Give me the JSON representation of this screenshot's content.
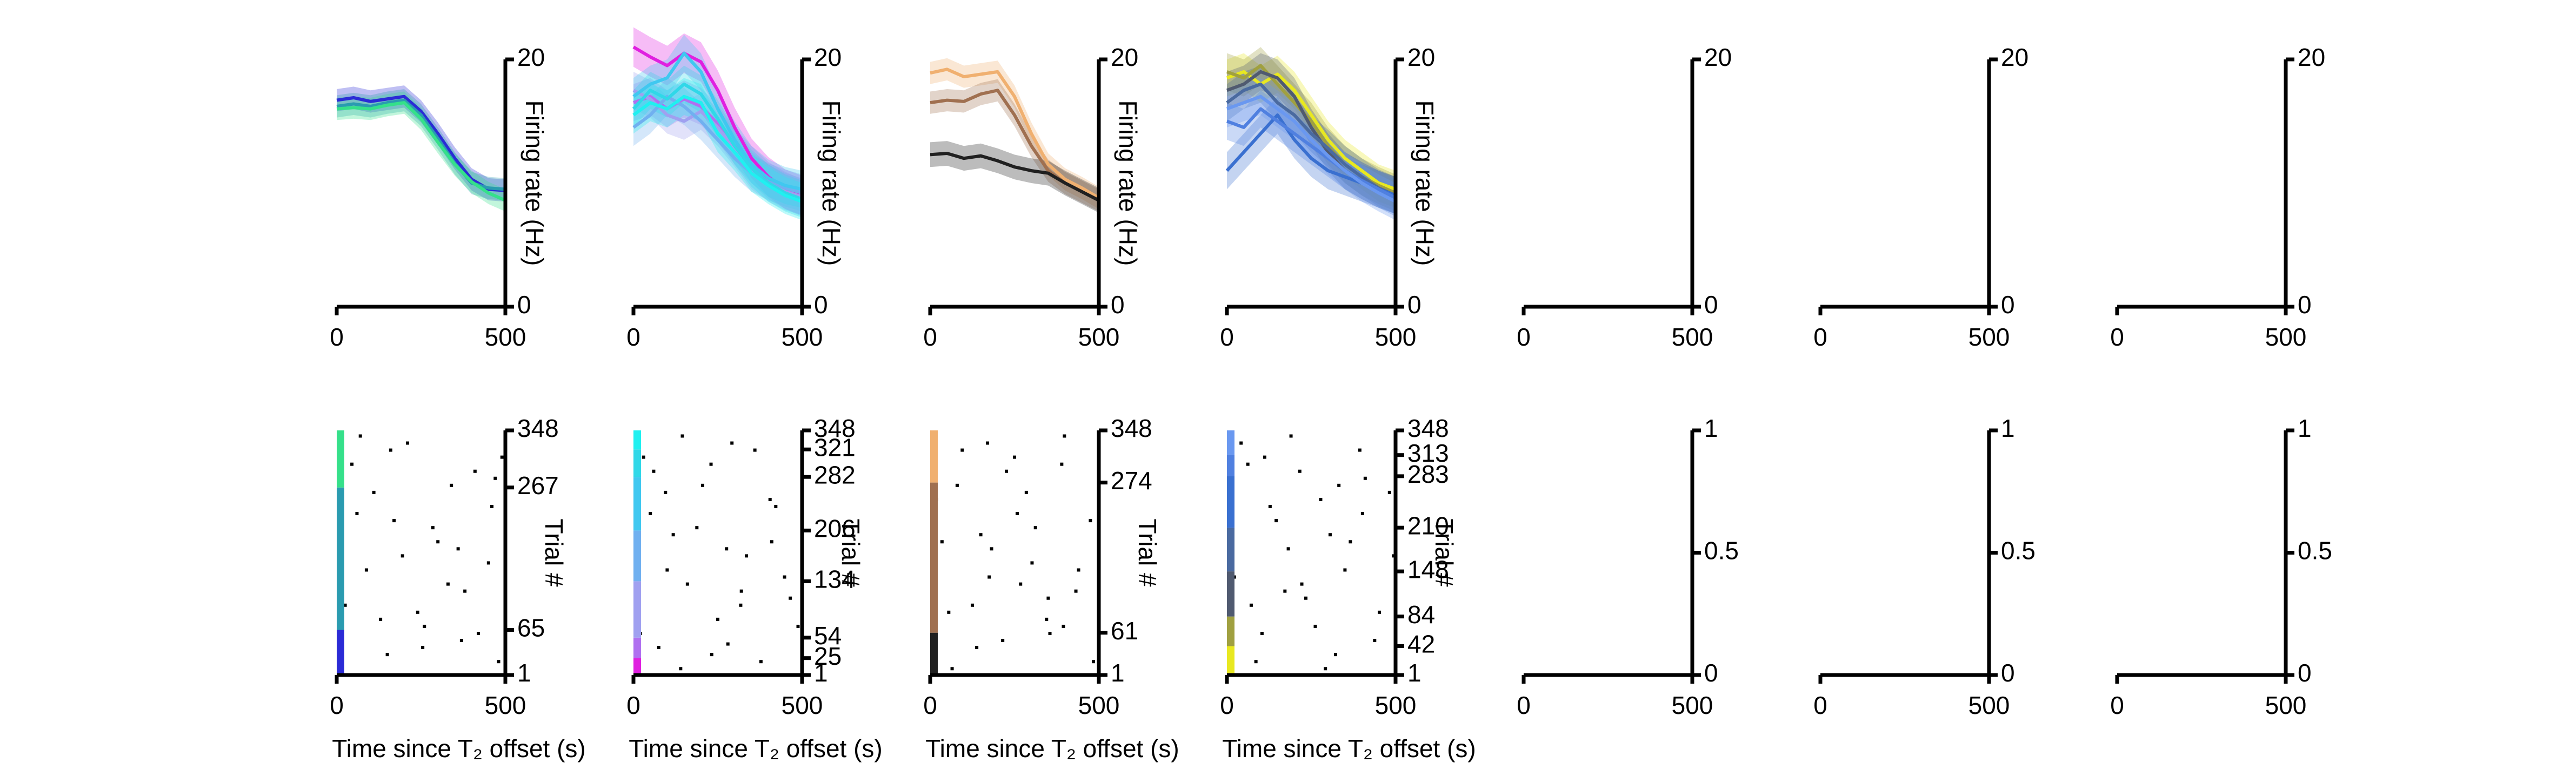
{
  "chart_data": [
    {
      "type": "line",
      "ylabel": "Firing rate (Hz)",
      "x": [
        0,
        50,
        100,
        150,
        200,
        250,
        300,
        350,
        400,
        450,
        500
      ],
      "xlim": [
        0,
        500
      ],
      "xticks": [
        0,
        500
      ],
      "ylim": [
        0,
        20
      ],
      "yticks": [
        0,
        20
      ],
      "series": [
        {
          "color": "#2b2bd6",
          "error": 0.9,
          "values": [
            16.7,
            16.9,
            16.6,
            16.8,
            17.0,
            15.8,
            14.0,
            12.0,
            10.3,
            9.5,
            9.4
          ]
        },
        {
          "color": "#2a9bb0",
          "error": 0.9,
          "values": [
            16.2,
            16.4,
            16.2,
            16.5,
            16.7,
            15.5,
            13.6,
            11.6,
            10.0,
            9.6,
            9.5
          ]
        },
        {
          "color": "#35e08a",
          "error": 0.9,
          "values": [
            16.0,
            16.1,
            16.0,
            16.3,
            16.5,
            15.2,
            13.3,
            11.5,
            10.1,
            9.2,
            8.6
          ]
        }
      ]
    },
    {
      "type": "line",
      "ylabel": "Firing rate (Hz)",
      "x": [
        0,
        50,
        100,
        150,
        200,
        250,
        300,
        350,
        400,
        450,
        500
      ],
      "xlim": [
        0,
        500
      ],
      "xticks": [
        0,
        500
      ],
      "ylim": [
        0,
        20
      ],
      "yticks": [
        0,
        20
      ],
      "series": [
        {
          "color": "#e020e0",
          "error": 1.6,
          "values": [
            21.0,
            20.2,
            19.5,
            20.5,
            19.8,
            17.5,
            14.5,
            12.0,
            10.5,
            9.5,
            9.0
          ]
        },
        {
          "color": "#b070f0",
          "error": 1.5,
          "values": [
            16.5,
            17.0,
            16.0,
            16.8,
            16.2,
            14.8,
            13.0,
            11.5,
            10.2,
            9.4,
            8.8
          ]
        },
        {
          "color": "#a0a0f0",
          "error": 1.5,
          "values": [
            17.5,
            16.8,
            15.5,
            15.0,
            15.8,
            14.5,
            12.8,
            11.0,
            10.0,
            9.3,
            8.9
          ]
        },
        {
          "color": "#70b0f0",
          "error": 1.5,
          "values": [
            14.5,
            15.5,
            17.0,
            16.2,
            15.0,
            13.5,
            12.0,
            10.8,
            10.1,
            9.6,
            9.2
          ]
        },
        {
          "color": "#40c8f0",
          "error": 1.5,
          "values": [
            17.0,
            18.0,
            18.5,
            20.5,
            19.0,
            16.0,
            13.5,
            11.5,
            10.4,
            9.8,
            9.5
          ]
        },
        {
          "color": "#30d8e8",
          "error": 1.5,
          "values": [
            16.0,
            17.5,
            16.8,
            18.0,
            17.2,
            15.2,
            13.0,
            11.2,
            10.0,
            9.2,
            8.7
          ]
        },
        {
          "color": "#20f0f0",
          "error": 1.5,
          "values": [
            15.5,
            16.5,
            16.0,
            17.0,
            16.5,
            14.0,
            12.5,
            10.8,
            9.8,
            9.0,
            8.5
          ]
        }
      ]
    },
    {
      "type": "line",
      "ylabel": "Firing rate (Hz)",
      "x": [
        0,
        50,
        100,
        150,
        200,
        250,
        300,
        350,
        400,
        450,
        500
      ],
      "xlim": [
        0,
        500
      ],
      "xticks": [
        0,
        500
      ],
      "ylim": [
        0,
        20
      ],
      "yticks": [
        0,
        20
      ],
      "series": [
        {
          "color": "#f0b070",
          "error": 0.9,
          "values": [
            18.9,
            19.2,
            18.6,
            18.8,
            19.0,
            17.0,
            14.0,
            11.5,
            10.3,
            9.6,
            8.8
          ]
        },
        {
          "color": "#a07050",
          "error": 0.9,
          "values": [
            16.5,
            16.7,
            16.6,
            17.2,
            17.5,
            15.5,
            13.0,
            11.0,
            10.0,
            9.3,
            8.6
          ]
        },
        {
          "color": "#202020",
          "error": 1.0,
          "values": [
            12.3,
            12.4,
            12.0,
            12.2,
            11.8,
            11.3,
            11.0,
            10.8,
            10.0,
            9.3,
            8.6
          ]
        }
      ]
    },
    {
      "type": "line",
      "ylabel": "Firing rate (Hz)",
      "x": [
        0,
        50,
        100,
        150,
        200,
        250,
        300,
        350,
        400,
        450,
        500
      ],
      "xlim": [
        0,
        500
      ],
      "xticks": [
        0,
        500
      ],
      "ylim": [
        0,
        20
      ],
      "yticks": [
        0,
        20
      ],
      "series": [
        {
          "color": "#e8e820",
          "error": 1.5,
          "values": [
            18.5,
            19.0,
            18.0,
            18.8,
            17.5,
            15.5,
            13.5,
            12.0,
            11.0,
            10.0,
            9.5
          ]
        },
        {
          "color": "#a0a040",
          "error": 1.5,
          "values": [
            19.0,
            18.5,
            19.5,
            18.0,
            16.5,
            15.0,
            13.0,
            11.5,
            10.5,
            9.8,
            9.2
          ]
        },
        {
          "color": "#505a70",
          "error": 1.5,
          "values": [
            17.5,
            18.0,
            19.0,
            18.5,
            17.0,
            14.5,
            12.5,
            11.0,
            10.2,
            9.5,
            9.0
          ]
        },
        {
          "color": "#4a6aa0",
          "error": 1.5,
          "values": [
            16.5,
            17.5,
            18.0,
            16.5,
            15.5,
            14.0,
            12.8,
            11.5,
            10.5,
            9.6,
            9.0
          ]
        },
        {
          "color": "#3a70d0",
          "error": 1.5,
          "values": [
            11.0,
            12.5,
            14.0,
            15.5,
            13.5,
            12.0,
            11.0,
            10.5,
            10.0,
            9.5,
            9.0
          ]
        },
        {
          "color": "#5080e0",
          "error": 1.5,
          "values": [
            15.0,
            14.5,
            16.0,
            15.0,
            14.0,
            13.0,
            12.0,
            11.0,
            10.2,
            9.5,
            8.8
          ]
        },
        {
          "color": "#6a98f0",
          "error": 1.5,
          "values": [
            16.0,
            16.5,
            17.0,
            16.0,
            15.0,
            13.5,
            12.2,
            11.0,
            10.0,
            9.2,
            8.5
          ]
        }
      ]
    },
    {
      "type": "line",
      "xlim": [
        0,
        500
      ],
      "xticks": [
        0,
        500
      ],
      "ylim": [
        0,
        20
      ],
      "yticks": [
        0,
        20
      ],
      "series": []
    },
    {
      "type": "line",
      "xlim": [
        0,
        500
      ],
      "xticks": [
        0,
        500
      ],
      "ylim": [
        0,
        20
      ],
      "yticks": [
        0,
        20
      ],
      "series": []
    },
    {
      "type": "line",
      "xlim": [
        0,
        500
      ],
      "xticks": [
        0,
        500
      ],
      "ylim": [
        0,
        20
      ],
      "yticks": [
        0,
        20
      ],
      "series": []
    },
    {
      "type": "raster",
      "xlabel": "Time since T₂ offset (s)",
      "ylabel": "Trial #",
      "xlim": [
        0,
        500
      ],
      "xticks": [
        0,
        500
      ],
      "ylim": [
        1,
        348
      ],
      "yticks": [
        1,
        65,
        267,
        348
      ],
      "segment_colors": [
        "#2b2bd6",
        "#2a9bb0",
        "#35e08a"
      ],
      "spikes": {
        "x": [
          12,
          45,
          88,
          130,
          170,
          210,
          255,
          300,
          340,
          380,
          420,
          460,
          490,
          25,
          70,
          110,
          150,
          195,
          240,
          285,
          330,
          370,
          410,
          450,
          480,
          60,
          160,
          260,
          360,
          470
        ],
        "y": [
          20,
          300,
          150,
          80,
          220,
          330,
          40,
          190,
          270,
          120,
          60,
          240,
          310,
          100,
          340,
          260,
          30,
          170,
          90,
          210,
          130,
          50,
          290,
          160,
          20,
          230,
          320,
          70,
          180,
          280
        ]
      }
    },
    {
      "type": "raster",
      "xlabel": "Time since T₂ offset (s)",
      "ylabel": "Trial #",
      "xlim": [
        0,
        500
      ],
      "xticks": [
        0,
        500
      ],
      "ylim": [
        1,
        348
      ],
      "yticks": [
        1,
        25,
        54,
        134,
        206,
        282,
        321,
        348
      ],
      "segment_colors": [
        "#e020e0",
        "#b070f0",
        "#a0a0f0",
        "#70b0f0",
        "#40c8f0",
        "#30d8e8",
        "#20f0f0"
      ],
      "spikes": {
        "x": [
          30,
          75,
          118,
          160,
          205,
          250,
          292,
          335,
          378,
          422,
          465,
          20,
          60,
          100,
          145,
          188,
          232,
          276,
          318,
          360,
          405,
          448,
          488,
          50,
          140,
          230,
          320,
          410,
          95,
          280
        ],
        "y": [
          310,
          40,
          200,
          130,
          270,
          80,
          330,
          170,
          20,
          240,
          110,
          60,
          290,
          150,
          340,
          210,
          30,
          180,
          100,
          320,
          250,
          140,
          70,
          230,
          10,
          300,
          120,
          190,
          260,
          45
        ]
      }
    },
    {
      "type": "raster",
      "xlabel": "Time since T₂ offset (s)",
      "ylabel": "Trial #",
      "xlim": [
        0,
        500
      ],
      "xticks": [
        0,
        500
      ],
      "ylim": [
        1,
        348
      ],
      "yticks": [
        1,
        61,
        274,
        348
      ],
      "segment_colors": [
        "#202020",
        "#a07050",
        "#f0b070"
      ],
      "spikes": {
        "x": [
          18,
          55,
          95,
          138,
          182,
          226,
          268,
          312,
          355,
          398,
          440,
          484,
          35,
          80,
          125,
          170,
          215,
          258,
          302,
          345,
          390,
          432,
          475,
          65,
          175,
          285,
          395,
          150,
          250,
          350
        ],
        "y": [
          250,
          90,
          320,
          40,
          180,
          290,
          130,
          210,
          60,
          340,
          150,
          20,
          190,
          270,
          100,
          330,
          50,
          230,
          160,
          80,
          300,
          120,
          220,
          10,
          140,
          260,
          70,
          200,
          310,
          110
        ]
      }
    },
    {
      "type": "raster",
      "xlabel": "Time since T₂ offset (s)",
      "ylabel": "Trial #",
      "xlim": [
        0,
        500
      ],
      "xticks": [
        0,
        500
      ],
      "ylim": [
        1,
        348
      ],
      "yticks": [
        1,
        42,
        84,
        148,
        210,
        283,
        313,
        348
      ],
      "segment_colors": [
        "#e8e820",
        "#a0a040",
        "#505a70",
        "#4a6aa0",
        "#3a70d0",
        "#5080e0",
        "#6a98f0"
      ],
      "spikes": {
        "x": [
          22,
          62,
          104,
          146,
          190,
          234,
          278,
          322,
          366,
          410,
          452,
          494,
          42,
          86,
          128,
          172,
          216,
          262,
          306,
          350,
          394,
          438,
          482,
          72,
          182,
          292,
          402,
          112,
          222,
          332
        ],
        "y": [
          140,
          300,
          60,
          220,
          340,
          110,
          250,
          30,
          190,
          280,
          90,
          170,
          330,
          20,
          240,
          120,
          290,
          70,
          200,
          150,
          320,
          50,
          260,
          100,
          180,
          10,
          230,
          310,
          130,
          270
        ]
      }
    },
    {
      "type": "raster",
      "xlim": [
        0,
        500
      ],
      "xticks": [
        0,
        500
      ],
      "ylim": [
        0,
        1
      ],
      "yticks": [
        0,
        0.5,
        1
      ]
    },
    {
      "type": "raster",
      "xlim": [
        0,
        500
      ],
      "xticks": [
        0,
        500
      ],
      "ylim": [
        0,
        1
      ],
      "yticks": [
        0,
        0.5,
        1
      ]
    },
    {
      "type": "raster",
      "xlim": [
        0,
        500
      ],
      "xticks": [
        0,
        500
      ],
      "ylim": [
        0,
        1
      ],
      "yticks": [
        0,
        0.5,
        1
      ]
    }
  ]
}
